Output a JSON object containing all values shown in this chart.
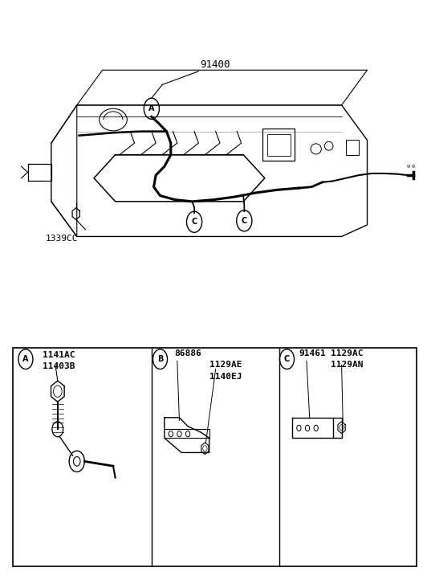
{
  "bg_color": "#ffffff",
  "line_color": "#000000",
  "fig_width": 5.32,
  "fig_height": 7.27,
  "dpi": 100,
  "main_label": "91400",
  "label_1339CC": "1339CC",
  "circle_A_label": "A",
  "circle_B_label": "B",
  "circle_C_label": "C",
  "text_A_parts": [
    "1141AC",
    "11403B"
  ],
  "text_B_parts": [
    "86886",
    "1129AE",
    "1140EJ"
  ],
  "text_C_parts": [
    "91461",
    "1129AC",
    "1129AN"
  ]
}
